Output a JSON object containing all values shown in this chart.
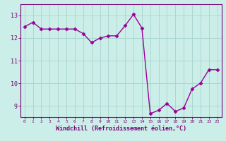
{
  "x": [
    0,
    1,
    2,
    3,
    4,
    5,
    6,
    7,
    8,
    9,
    10,
    11,
    12,
    13,
    14,
    15,
    16,
    17,
    18,
    19,
    20,
    21,
    22,
    23
  ],
  "y": [
    12.5,
    12.7,
    12.4,
    12.4,
    12.4,
    12.4,
    12.4,
    12.2,
    11.8,
    12.0,
    12.1,
    12.1,
    12.55,
    13.05,
    12.45,
    8.65,
    8.8,
    9.1,
    8.75,
    8.9,
    9.75,
    10.0,
    10.6,
    10.6
  ],
  "line_color": "#990099",
  "marker": "D",
  "markersize": 2.5,
  "linewidth": 1.0,
  "bg_color": "#cceee8",
  "grid_color": "#aad8d0",
  "xlabel": "Windchill (Refroidissement éolien,°C)",
  "xlabel_color": "#770077",
  "tick_color": "#770077",
  "axis_color": "#770077",
  "ylim": [
    8.5,
    13.5
  ],
  "yticks": [
    9,
    10,
    11,
    12,
    13
  ],
  "xlim": [
    -0.5,
    23.5
  ],
  "xticks": [
    0,
    1,
    2,
    3,
    4,
    5,
    6,
    7,
    8,
    9,
    10,
    11,
    12,
    13,
    14,
    15,
    16,
    17,
    18,
    19,
    20,
    21,
    22,
    23
  ]
}
